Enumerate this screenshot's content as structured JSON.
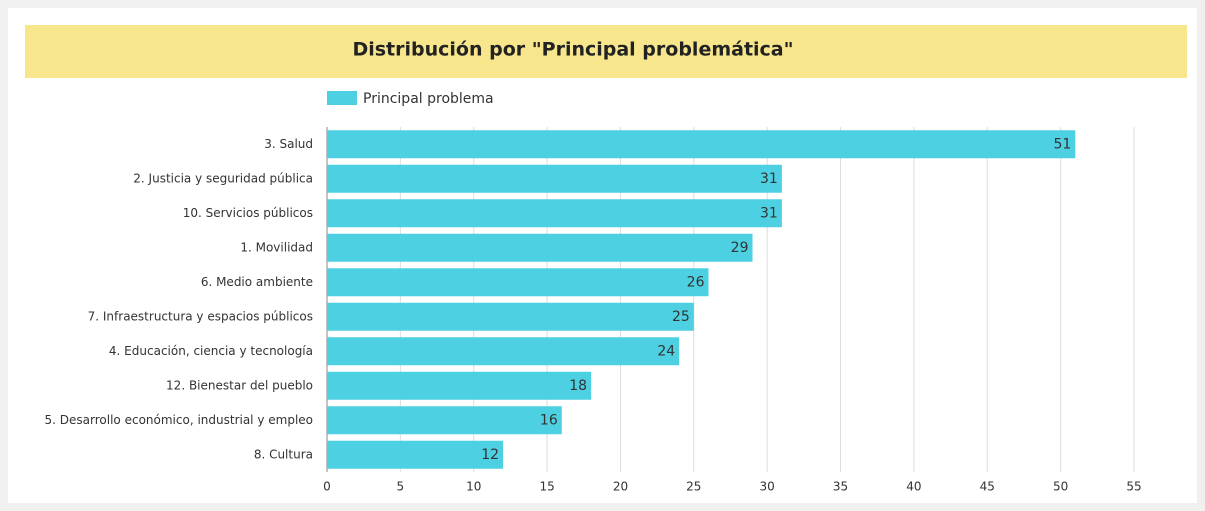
{
  "chart_data": {
    "type": "bar",
    "orientation": "horizontal",
    "title": "Distribución por \"Principal problemática\"",
    "categories": [
      "3. Salud",
      "2. Justicia y seguridad pública",
      "10. Servicios públicos",
      "1. Movilidad",
      "6. Medio ambiente",
      "7. Infraestructura y espacios públicos",
      "4. Educación, ciencia y tecnología",
      "12. Bienestar del pueblo",
      "5. Desarrollo económico, industrial y empleo",
      "8. Cultura"
    ],
    "series": [
      {
        "name": "Principal problema",
        "color": "#4dd0e1",
        "values": [
          51,
          31,
          31,
          29,
          26,
          25,
          24,
          18,
          16,
          12
        ]
      }
    ],
    "xlim": [
      0,
      55
    ],
    "xticks": [
      0,
      5,
      10,
      15,
      20,
      25,
      30,
      35,
      40,
      45,
      50,
      55
    ],
    "grid": true
  }
}
